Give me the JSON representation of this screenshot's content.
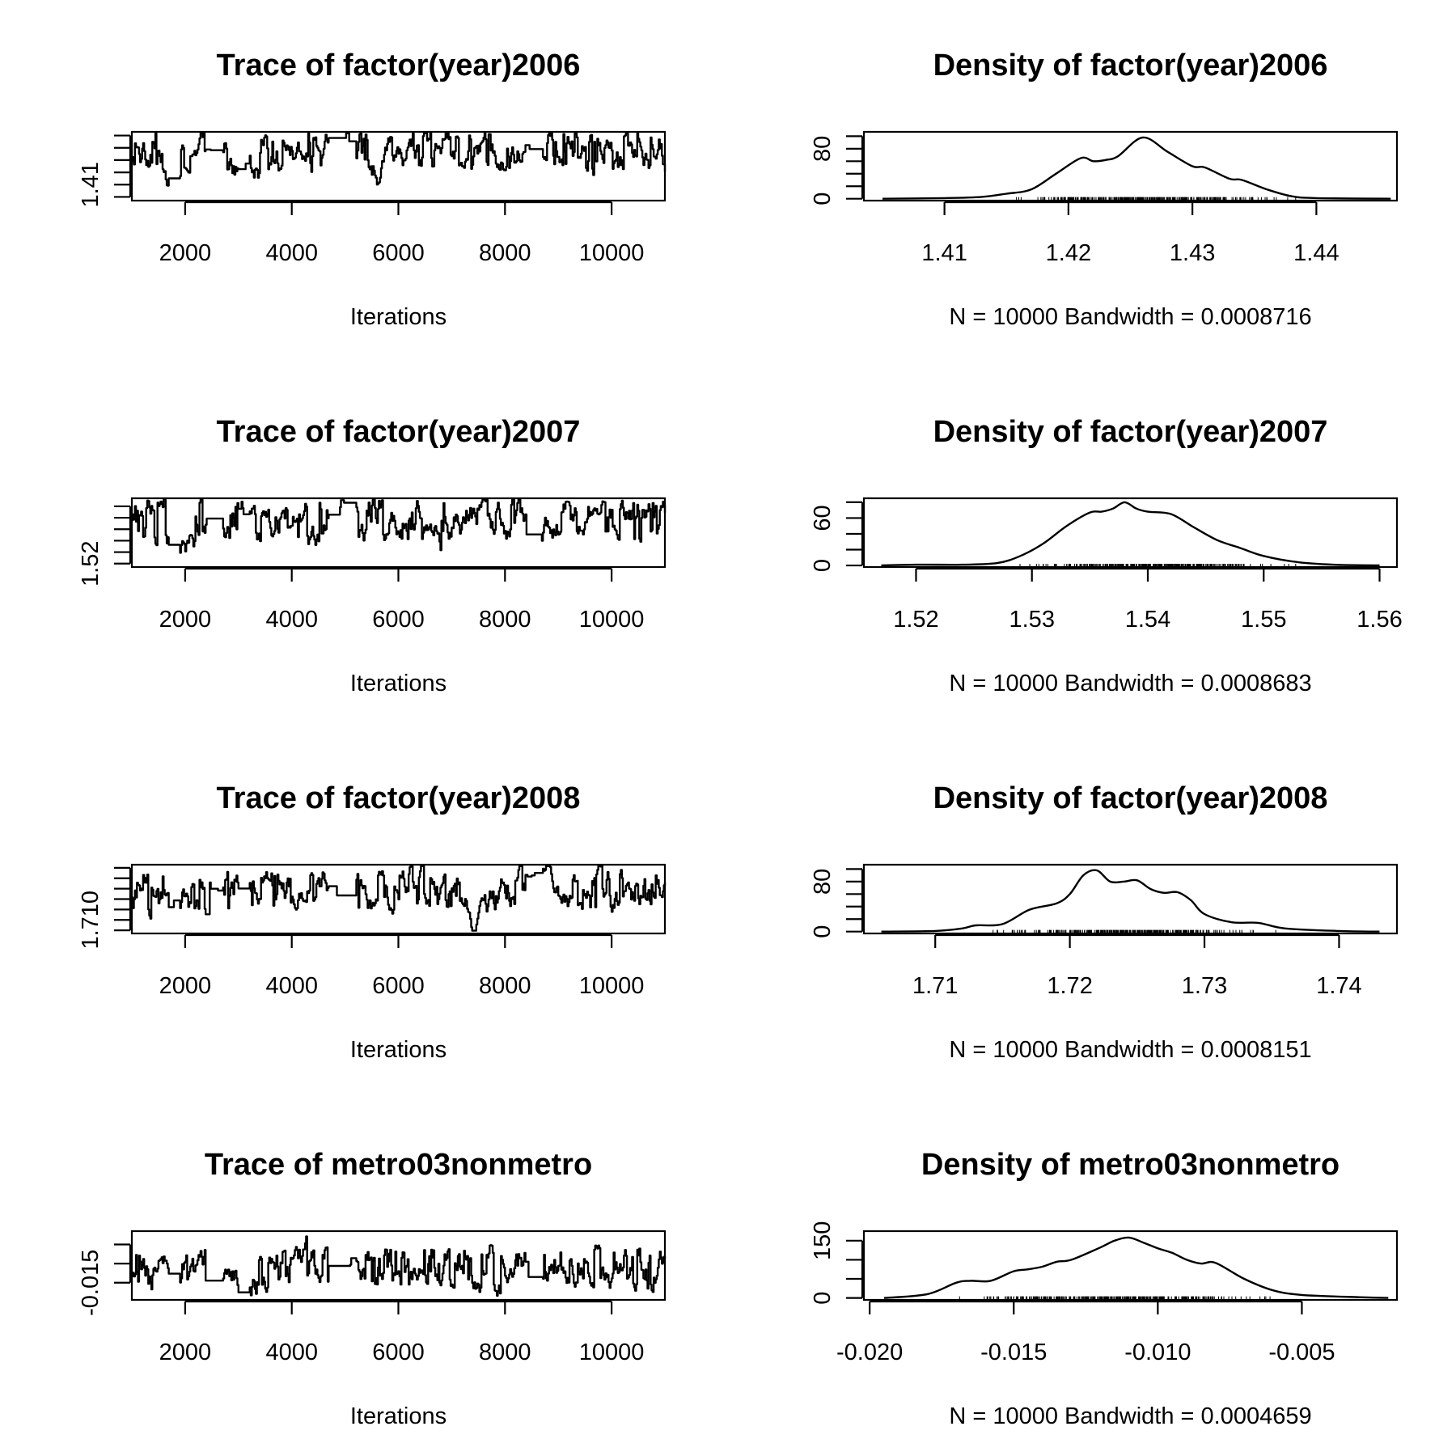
{
  "chart_data": [
    {
      "type": "line",
      "kind": "trace",
      "title": "Trace of factor(year)2006",
      "xlabel": "Iterations",
      "ylabel": "",
      "x_ticks": [
        2000,
        4000,
        6000,
        8000,
        10000
      ],
      "x_tick_labels": [
        "2000",
        "4000",
        "6000",
        "8000",
        "10000"
      ],
      "xlim": [
        1000,
        11000
      ],
      "y_ticks": [
        1.405,
        1.41,
        1.415,
        1.42,
        1.425,
        1.43
      ],
      "y_tick_labels": [
        "",
        "1.41",
        "",
        "",
        "",
        ""
      ],
      "ylim": [
        1.4035,
        1.4315
      ],
      "seed": 11,
      "series_mean": 1.4235,
      "series_sd": 0.0045
    },
    {
      "type": "line",
      "kind": "density",
      "title": "Density of factor(year)2006",
      "xlabel": "N = 10000   Bandwidth = 0.0008716",
      "ylabel": "",
      "x_ticks": [
        1.41,
        1.42,
        1.43,
        1.44
      ],
      "x_tick_labels": [
        "1.41",
        "1.42",
        "1.43",
        "1.44"
      ],
      "xlim": [
        1.4035,
        1.4465
      ],
      "y_ticks": [
        0,
        20,
        40,
        60,
        80,
        100
      ],
      "y_tick_labels": [
        "0",
        "",
        "",
        "",
        "80",
        ""
      ],
      "ylim": [
        -3,
        107
      ],
      "x": [
        1.405,
        1.41,
        1.413,
        1.415,
        1.417,
        1.419,
        1.421,
        1.422,
        1.423,
        1.424,
        1.426,
        1.428,
        1.43,
        1.431,
        1.433,
        1.434,
        1.436,
        1.438,
        1.44,
        1.446
      ],
      "y": [
        0,
        1,
        3,
        8,
        15,
        40,
        65,
        60,
        62,
        68,
        98,
        75,
        52,
        50,
        32,
        30,
        15,
        4,
        1,
        0
      ],
      "rug_range": [
        1.413,
        1.44
      ]
    },
    {
      "type": "line",
      "kind": "trace",
      "title": "Trace of factor(year)2007",
      "xlabel": "Iterations",
      "ylabel": "",
      "x_ticks": [
        2000,
        4000,
        6000,
        8000,
        10000
      ],
      "x_tick_labels": [
        "2000",
        "4000",
        "6000",
        "8000",
        "10000"
      ],
      "xlim": [
        1000,
        11000
      ],
      "y_ticks": [
        1.52,
        1.525,
        1.53,
        1.535,
        1.54,
        1.545
      ],
      "y_tick_labels": [
        "1.52",
        "",
        "",
        "",
        "",
        ""
      ],
      "ylim": [
        1.5185,
        1.5485
      ],
      "seed": 23,
      "series_mean": 1.5385,
      "series_sd": 0.0048
    },
    {
      "type": "line",
      "kind": "density",
      "title": "Density of factor(year)2007",
      "xlabel": "N = 10000   Bandwidth = 0.0008683",
      "ylabel": "",
      "x_ticks": [
        1.52,
        1.53,
        1.54,
        1.55,
        1.56
      ],
      "x_tick_labels": [
        "1.52",
        "1.53",
        "1.54",
        "1.55",
        "1.56"
      ],
      "xlim": [
        1.5155,
        1.5615
      ],
      "y_ticks": [
        0,
        20,
        40,
        60,
        80
      ],
      "y_tick_labels": [
        "0",
        "",
        "",
        "60",
        ""
      ],
      "ylim": [
        -2,
        85
      ],
      "x": [
        1.517,
        1.52,
        1.524,
        1.527,
        1.529,
        1.531,
        1.533,
        1.535,
        1.536,
        1.537,
        1.538,
        1.539,
        1.54,
        1.542,
        1.544,
        1.546,
        1.548,
        1.55,
        1.553,
        1.556,
        1.56
      ],
      "y": [
        0,
        1,
        1,
        3,
        12,
        28,
        50,
        67,
        68,
        72,
        80,
        72,
        68,
        65,
        48,
        32,
        22,
        12,
        4,
        1,
        0
      ],
      "rug_range": [
        1.527,
        1.554
      ]
    },
    {
      "type": "line",
      "kind": "trace",
      "title": "Trace of factor(year)2008",
      "xlabel": "Iterations",
      "ylabel": "",
      "x_ticks": [
        2000,
        4000,
        6000,
        8000,
        10000
      ],
      "x_tick_labels": [
        "2000",
        "4000",
        "6000",
        "8000",
        "10000"
      ],
      "xlim": [
        1000,
        11000
      ],
      "y_ticks": [
        1.705,
        1.71,
        1.715,
        1.72,
        1.725,
        1.73,
        1.735
      ],
      "y_tick_labels": [
        "",
        "1.710",
        "",
        "",
        "",
        "",
        ""
      ],
      "ylim": [
        1.7035,
        1.7365
      ],
      "seed": 37,
      "series_mean": 1.7235,
      "series_sd": 0.005
    },
    {
      "type": "line",
      "kind": "density",
      "title": "Density of factor(year)2008",
      "xlabel": "N = 10000   Bandwidth = 0.0008151",
      "ylabel": "",
      "x_ticks": [
        1.71,
        1.72,
        1.73,
        1.74
      ],
      "x_tick_labels": [
        "1.71",
        "1.72",
        "1.73",
        "1.74"
      ],
      "xlim": [
        1.7047,
        1.7443
      ],
      "y_ticks": [
        0,
        20,
        40,
        60,
        80,
        100
      ],
      "y_tick_labels": [
        "0",
        "",
        "",
        "",
        "80",
        ""
      ],
      "ylim": [
        -3,
        107
      ],
      "x": [
        1.706,
        1.71,
        1.712,
        1.713,
        1.715,
        1.717,
        1.719,
        1.72,
        1.721,
        1.722,
        1.723,
        1.724,
        1.725,
        1.726,
        1.727,
        1.728,
        1.729,
        1.73,
        1.732,
        1.734,
        1.736,
        1.74,
        1.743
      ],
      "y": [
        0,
        1,
        5,
        10,
        12,
        35,
        45,
        60,
        90,
        98,
        80,
        80,
        82,
        68,
        62,
        63,
        50,
        28,
        15,
        14,
        5,
        1,
        0
      ],
      "rug_range": [
        1.712,
        1.737
      ]
    },
    {
      "type": "line",
      "kind": "trace",
      "title": "Trace of metro03nonmetro",
      "xlabel": "Iterations",
      "ylabel": "",
      "x_ticks": [
        2000,
        4000,
        6000,
        8000,
        10000
      ],
      "x_tick_labels": [
        "2000",
        "4000",
        "6000",
        "8000",
        "10000"
      ],
      "xlim": [
        1000,
        11000
      ],
      "y_ticks": [
        -0.015,
        -0.01,
        -0.005
      ],
      "y_tick_labels": [
        "-0.015",
        "",
        ""
      ],
      "ylim": [
        -0.0195,
        -0.0015
      ],
      "seed": 53,
      "series_mean": -0.011,
      "series_sd": 0.0028
    },
    {
      "type": "line",
      "kind": "density",
      "title": "Density of metro03nonmetro",
      "xlabel": "N = 10000   Bandwidth = 0.0004659",
      "ylabel": "",
      "x_ticks": [
        -0.02,
        -0.015,
        -0.01,
        -0.005
      ],
      "x_tick_labels": [
        "-0.020",
        "-0.015",
        "-0.010",
        "-0.005"
      ],
      "xlim": [
        -0.0202,
        -0.0017
      ],
      "y_ticks": [
        0,
        50,
        100,
        150
      ],
      "y_tick_labels": [
        "0",
        "",
        "",
        "150"
      ],
      "ylim": [
        -5,
        175
      ],
      "x": [
        -0.0195,
        -0.018,
        -0.017,
        -0.0165,
        -0.0158,
        -0.015,
        -0.0145,
        -0.014,
        -0.0135,
        -0.013,
        -0.012,
        -0.0115,
        -0.011,
        -0.0105,
        -0.01,
        -0.0095,
        -0.009,
        -0.0085,
        -0.008,
        -0.007,
        -0.006,
        -0.005,
        -0.003,
        -0.002
      ],
      "y": [
        0,
        10,
        40,
        45,
        45,
        70,
        75,
        82,
        95,
        100,
        132,
        150,
        158,
        145,
        130,
        118,
        100,
        90,
        92,
        50,
        20,
        8,
        2,
        0
      ],
      "rug_range": [
        -0.018,
        -0.005
      ]
    }
  ]
}
